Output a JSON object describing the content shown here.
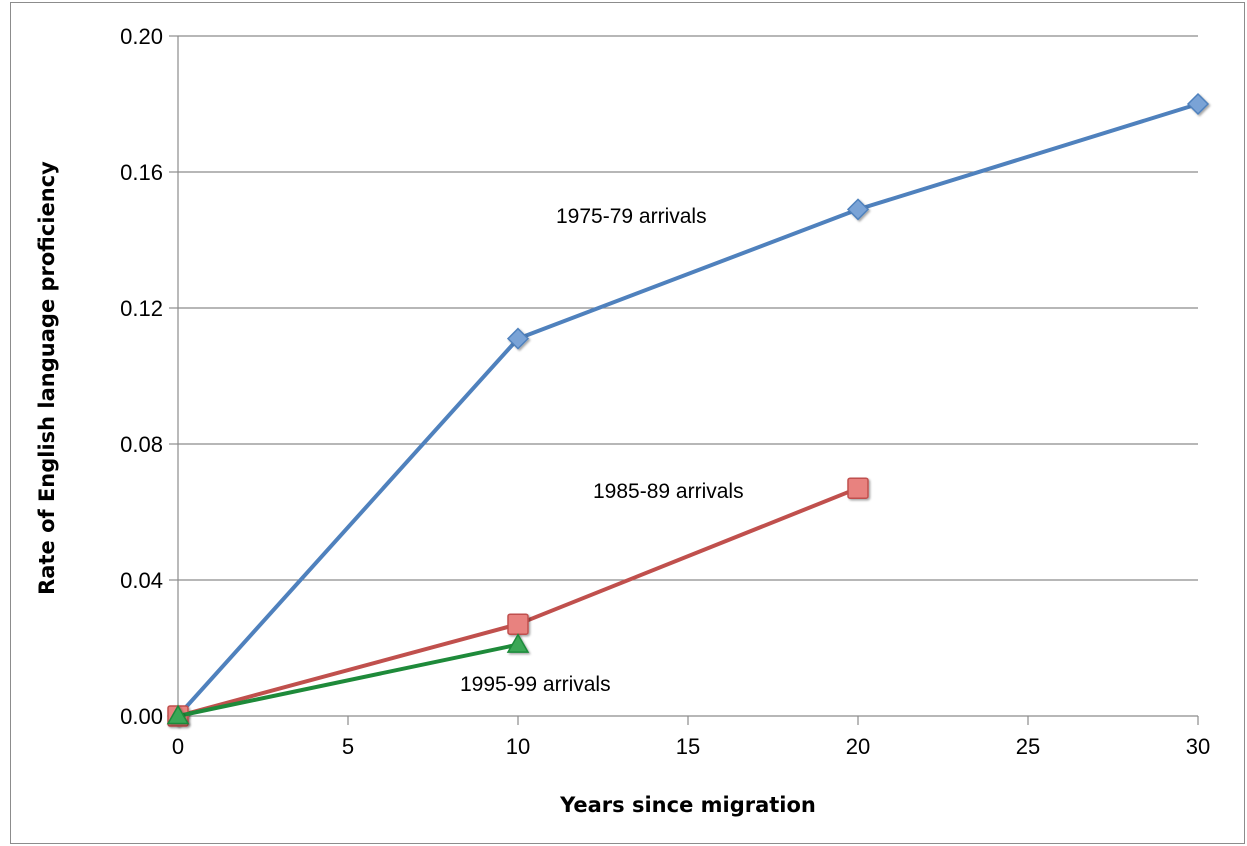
{
  "chart_data": {
    "type": "line",
    "title": "",
    "xlabel": "Years since migration",
    "ylabel": "Rate of English language proficiency",
    "xlim": [
      0,
      30
    ],
    "ylim": [
      0,
      0.2
    ],
    "x_ticks": [
      "0",
      "5",
      "10",
      "15",
      "20",
      "25",
      "30"
    ],
    "y_ticks": [
      "0.00",
      "0.04",
      "0.08",
      "0.12",
      "0.16",
      "0.20"
    ],
    "grid": "horizontal",
    "legend": "none",
    "series": [
      {
        "name": "1975-79 arrivals",
        "color": "#4f81bd",
        "marker": "diamond",
        "x": [
          0,
          10,
          20,
          30
        ],
        "y": [
          0.0,
          0.111,
          0.149,
          0.18
        ]
      },
      {
        "name": "1985-89 arrivals",
        "color": "#c0504d",
        "marker": "square",
        "x": [
          0,
          10,
          20
        ],
        "y": [
          0.0,
          0.027,
          0.067
        ]
      },
      {
        "name": "1995-99 arrivals",
        "color": "#1e8a3a",
        "marker": "triangle",
        "x": [
          0,
          10
        ],
        "y": [
          0.0,
          0.021
        ]
      }
    ]
  }
}
